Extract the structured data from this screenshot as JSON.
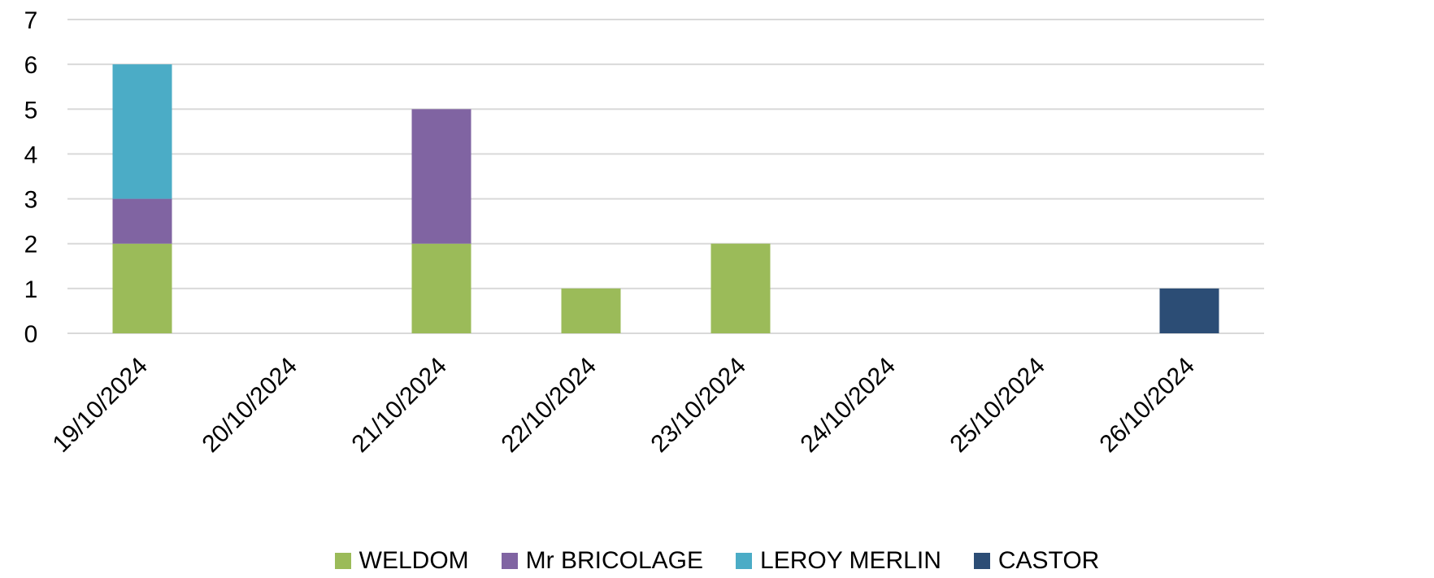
{
  "chart_data": {
    "type": "bar",
    "stacked": true,
    "title": "",
    "xlabel": "",
    "ylabel": "",
    "categories": [
      "19/10/2024",
      "20/10/2024",
      "21/10/2024",
      "22/10/2024",
      "23/10/2024",
      "24/10/2024",
      "25/10/2024",
      "26/10/2024"
    ],
    "ylim": [
      0,
      7
    ],
    "yticks": [
      0,
      1,
      2,
      3,
      4,
      5,
      6,
      7
    ],
    "grid": true,
    "legend_position": "bottom",
    "series": [
      {
        "name": "WELDOM",
        "color": "#9BBB59",
        "values": [
          2,
          0,
          2,
          1,
          2,
          0,
          0,
          0
        ]
      },
      {
        "name": "Mr BRICOLAGE",
        "color": "#8064A2",
        "values": [
          1,
          0,
          3,
          0,
          0,
          0,
          0,
          0
        ]
      },
      {
        "name": "LEROY MERLIN",
        "color": "#4BACC6",
        "values": [
          3,
          0,
          0,
          0,
          0,
          0,
          0,
          0
        ]
      },
      {
        "name": "CASTOR",
        "color": "#2C4D75",
        "values": [
          0,
          0,
          0,
          0,
          0,
          0,
          0,
          1
        ]
      }
    ]
  }
}
